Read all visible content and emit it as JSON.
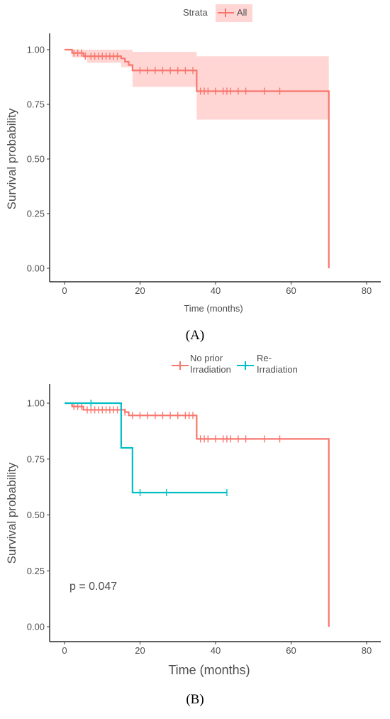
{
  "chart_data": [
    {
      "type": "line",
      "panel_label": "(A)",
      "xlabel": "Time (months)",
      "ylabel": "Survival probability",
      "xlim": [
        0,
        80
      ],
      "ylim": [
        0,
        1
      ],
      "x_ticks": [
        "0",
        "20",
        "40",
        "60",
        "80"
      ],
      "y_ticks": [
        "0.00",
        "0.25",
        "0.50",
        "0.75",
        "1.00"
      ],
      "legend": {
        "title": "Strata",
        "position": "top",
        "entries": [
          "All"
        ]
      },
      "series": [
        {
          "name": "All",
          "color": "#F8766D",
          "steps": [
            [
              0,
              1.0
            ],
            [
              2,
              0.985
            ],
            [
              5,
              0.97
            ],
            [
              15,
              0.96
            ],
            [
              16,
              0.945
            ],
            [
              17,
              0.93
            ],
            [
              18,
              0.905
            ],
            [
              35,
              0.81
            ],
            [
              70,
              0.81
            ],
            [
              70,
              0.0
            ]
          ],
          "ci_band": [
            [
              0,
              1.0,
              1.0
            ],
            [
              2,
              1.0,
              0.965
            ],
            [
              6,
              1.0,
              0.94
            ],
            [
              15,
              1.0,
              0.92
            ],
            [
              18,
              0.99,
              0.83
            ],
            [
              35,
              0.97,
              0.68
            ],
            [
              70,
              0.97,
              0.68
            ]
          ],
          "censor_times": [
            2.5,
            3.5,
            4.5,
            5.5,
            7,
            8,
            9,
            10,
            11,
            12,
            13,
            14,
            20,
            22,
            24,
            26,
            28,
            30,
            32,
            34,
            36,
            37,
            38,
            40,
            42,
            43,
            44,
            46,
            48,
            53,
            57
          ]
        }
      ],
      "grid": false
    },
    {
      "type": "line",
      "panel_label": "(B)",
      "xlabel": "Time (months)",
      "ylabel": "Survival probability",
      "xlim": [
        0,
        80
      ],
      "ylim": [
        0,
        1
      ],
      "x_ticks": [
        "0",
        "20",
        "40",
        "60",
        "80"
      ],
      "y_ticks": [
        "0.00",
        "0.25",
        "0.50",
        "0.75",
        "1.00"
      ],
      "legend": {
        "position": "top",
        "entries": [
          "No prior Irradiation",
          "Re-Irradiation"
        ]
      },
      "annotation": "p = 0.047",
      "series": [
        {
          "name": "No prior Irradiation",
          "color": "#F8766D",
          "steps": [
            [
              0,
              1.0
            ],
            [
              2,
              0.985
            ],
            [
              5,
              0.97
            ],
            [
              16,
              0.96
            ],
            [
              17,
              0.945
            ],
            [
              35,
              0.84
            ],
            [
              70,
              0.84
            ],
            [
              70,
              0.0
            ]
          ],
          "censor_times": [
            2.5,
            3.5,
            4.5,
            6,
            7,
            8,
            9,
            10,
            11,
            12,
            13,
            14,
            16,
            18,
            20,
            22,
            24,
            26,
            28,
            30,
            32,
            33,
            34,
            36,
            37,
            38,
            40,
            42,
            43,
            44,
            46,
            48,
            53,
            57
          ]
        },
        {
          "name": "Re-Irradiation",
          "color": "#00BFC4",
          "steps": [
            [
              0,
              1.0
            ],
            [
              15,
              0.8
            ],
            [
              18,
              0.6
            ],
            [
              43,
              0.6
            ]
          ],
          "censor_times": [
            7,
            20,
            27,
            43
          ]
        }
      ],
      "grid": false
    }
  ]
}
